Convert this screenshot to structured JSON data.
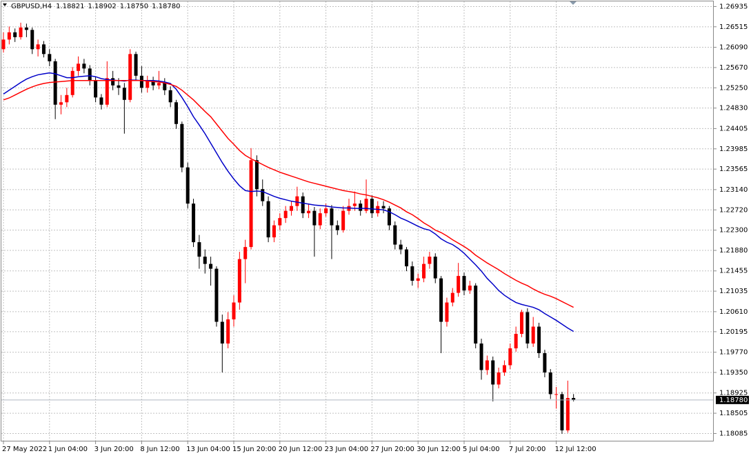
{
  "chart_data": {
    "type": "candlestick",
    "title": "GBPUSD,H4",
    "header_values": [
      "1.18821",
      "1.18902",
      "1.18750",
      "1.18780"
    ],
    "up_color": "#ff0000",
    "down_color": "#000000",
    "grid": true,
    "ylim": [
      1.1792,
      1.2707
    ],
    "yticks": [
      1.26935,
      1.26515,
      {
        "value": 1.2609,
        "label": "1.26090"
      },
      {
        "value": 1.2567,
        "label": "1.25670"
      },
      {
        "value": 1.2525,
        "label": "1.25250"
      },
      {
        "value": 1.2483,
        "label": "1.24830"
      },
      1.24405,
      1.23985,
      1.23565,
      {
        "value": 1.2314,
        "label": "1.23140"
      },
      {
        "value": 1.2272,
        "label": "1.22720"
      },
      {
        "value": 1.223,
        "label": "1.22300"
      },
      {
        "value": 1.2188,
        "label": "1.21880"
      },
      1.21455,
      1.21035,
      {
        "value": 1.2061,
        "label": "1.20610"
      },
      1.20195,
      {
        "value": 1.1977,
        "label": "1.19770"
      },
      {
        "value": 1.1935,
        "label": "1.19350"
      },
      1.18925,
      1.18505,
      1.18085
    ],
    "xticks": [
      {
        "value": 0,
        "label": "27 May 2022"
      },
      {
        "value": 8,
        "label": "1 Jun 04:00"
      },
      {
        "value": 16,
        "label": "3 Jun 20:00"
      },
      {
        "value": 24,
        "label": "8 Jun 12:00"
      },
      {
        "value": 32,
        "label": "13 Jun 04:00"
      },
      {
        "value": 40,
        "label": "15 Jun 20:00"
      },
      {
        "value": 48,
        "label": "20 Jun 12:00"
      },
      {
        "value": 56,
        "label": "23 Jun 04:00"
      },
      {
        "value": 64,
        "label": "27 Jun 20:00"
      },
      {
        "value": 72,
        "label": "30 Jun 12:00"
      },
      {
        "value": 80,
        "label": "5 Jul 04:00"
      },
      {
        "value": 88,
        "label": "7 Jul 20:00"
      },
      {
        "value": 96,
        "label": "12 Jul 12:00"
      }
    ],
    "current_price": {
      "value": 1.1878,
      "label": "1.18780"
    },
    "ohlc": [
      [
        1.2605,
        1.264,
        1.2598,
        1.2625
      ],
      [
        1.2625,
        1.2652,
        1.2615,
        1.264
      ],
      [
        1.264,
        1.2648,
        1.262,
        1.263
      ],
      [
        1.263,
        1.266,
        1.2625,
        1.265
      ],
      [
        1.265,
        1.2658,
        1.263,
        1.2645
      ],
      [
        1.2645,
        1.265,
        1.2595,
        1.2605
      ],
      [
        1.2605,
        1.2625,
        1.259,
        1.2615
      ],
      [
        1.2615,
        1.2622,
        1.2588,
        1.2595
      ],
      [
        1.2595,
        1.2605,
        1.257,
        1.258
      ],
      [
        1.258,
        1.2585,
        1.246,
        1.249
      ],
      [
        1.249,
        1.251,
        1.247,
        1.2495
      ],
      [
        1.2495,
        1.2525,
        1.2485,
        1.251
      ],
      [
        1.251,
        1.2568,
        1.2505,
        1.256
      ],
      [
        1.256,
        1.259,
        1.255,
        1.2575
      ],
      [
        1.2575,
        1.2585,
        1.2555,
        1.2565
      ],
      [
        1.2565,
        1.2572,
        1.253,
        1.254
      ],
      [
        1.254,
        1.2548,
        1.2495,
        1.2505
      ],
      [
        1.2505,
        1.2512,
        1.248,
        1.249
      ],
      [
        1.249,
        1.258,
        1.2485,
        1.2545
      ],
      [
        1.2545,
        1.256,
        1.252,
        1.253
      ],
      [
        1.253,
        1.2545,
        1.251,
        1.2525
      ],
      [
        1.2525,
        1.2535,
        1.243,
        1.25
      ],
      [
        1.25,
        1.2605,
        1.2495,
        1.2595
      ],
      [
        1.2595,
        1.26,
        1.254,
        1.255
      ],
      [
        1.255,
        1.257,
        1.2515,
        1.2525
      ],
      [
        1.2525,
        1.255,
        1.2515,
        1.254
      ],
      [
        1.254,
        1.2548,
        1.252,
        1.253
      ],
      [
        1.253,
        1.256,
        1.2522,
        1.2535
      ],
      [
        1.2535,
        1.2545,
        1.251,
        1.252
      ],
      [
        1.252,
        1.2528,
        1.2485,
        1.2495
      ],
      [
        1.2495,
        1.25,
        1.244,
        1.245
      ],
      [
        1.245,
        1.2455,
        1.235,
        1.236
      ],
      [
        1.236,
        1.237,
        1.2275,
        1.2285
      ],
      [
        1.2285,
        1.2295,
        1.2195,
        1.2205
      ],
      [
        1.2205,
        1.222,
        1.215,
        1.2175
      ],
      [
        1.2175,
        1.219,
        1.214,
        1.216
      ],
      [
        1.216,
        1.2175,
        1.2115,
        1.215
      ],
      [
        1.215,
        1.2155,
        1.203,
        1.204
      ],
      [
        1.204,
        1.2055,
        1.1935,
        1.1995
      ],
      [
        1.1995,
        1.206,
        1.1985,
        1.2045
      ],
      [
        1.2045,
        1.2095,
        1.203,
        1.208
      ],
      [
        1.208,
        1.2185,
        1.2065,
        1.217
      ],
      [
        1.217,
        1.221,
        1.212,
        1.2195
      ],
      [
        1.2195,
        1.24,
        1.219,
        1.2375
      ],
      [
        1.2375,
        1.2385,
        1.23,
        1.2315
      ],
      [
        1.2315,
        1.2335,
        1.228,
        1.229
      ],
      [
        1.229,
        1.23,
        1.2205,
        1.2215
      ],
      [
        1.2215,
        1.225,
        1.2205,
        1.224
      ],
      [
        1.224,
        1.2265,
        1.223,
        1.2255
      ],
      [
        1.2255,
        1.228,
        1.2245,
        1.227
      ],
      [
        1.227,
        1.229,
        1.226,
        1.228
      ],
      [
        1.228,
        1.232,
        1.227,
        1.23
      ],
      [
        1.23,
        1.2308,
        1.2255,
        1.2265
      ],
      [
        1.2265,
        1.2285,
        1.2255,
        1.227
      ],
      [
        1.227,
        1.2278,
        1.2175,
        1.224
      ],
      [
        1.224,
        1.2275,
        1.2232,
        1.2265
      ],
      [
        1.2265,
        1.2285,
        1.2258,
        1.2275
      ],
      [
        1.2275,
        1.2282,
        1.217,
        1.224
      ],
      [
        1.224,
        1.225,
        1.222,
        1.223
      ],
      [
        1.223,
        1.228,
        1.2225,
        1.227
      ],
      [
        1.227,
        1.2295,
        1.2262,
        1.228
      ],
      [
        1.228,
        1.231,
        1.227,
        1.2285
      ],
      [
        1.2285,
        1.2292,
        1.226,
        1.227
      ],
      [
        1.227,
        1.2335,
        1.2265,
        1.2295
      ],
      [
        1.2295,
        1.2302,
        1.2255,
        1.2265
      ],
      [
        1.2265,
        1.229,
        1.2258,
        1.228
      ],
      [
        1.228,
        1.229,
        1.2265,
        1.2275
      ],
      [
        1.2275,
        1.228,
        1.223,
        1.224
      ],
      [
        1.224,
        1.2248,
        1.219,
        1.22
      ],
      [
        1.22,
        1.221,
        1.218,
        1.219
      ],
      [
        1.219,
        1.2195,
        1.2145,
        1.2155
      ],
      [
        1.2155,
        1.2165,
        1.2115,
        1.2125
      ],
      [
        1.2125,
        1.214,
        1.211,
        1.213
      ],
      [
        1.213,
        1.2175,
        1.2122,
        1.216
      ],
      [
        1.216,
        1.2185,
        1.215,
        1.2175
      ],
      [
        1.2175,
        1.2182,
        1.212,
        1.213
      ],
      [
        1.213,
        1.2135,
        1.1975,
        1.204
      ],
      [
        1.204,
        1.209,
        1.203,
        1.208
      ],
      [
        1.208,
        1.211,
        1.2072,
        1.21
      ],
      [
        1.21,
        1.2162,
        1.2092,
        1.2135
      ],
      [
        1.2135,
        1.2142,
        1.2095,
        1.2105
      ],
      [
        1.2105,
        1.2125,
        1.2098,
        1.2115
      ],
      [
        1.2115,
        1.212,
        1.1985,
        1.1995
      ],
      [
        1.1995,
        1.2005,
        1.192,
        1.194
      ],
      [
        1.194,
        1.197,
        1.193,
        1.196
      ],
      [
        1.196,
        1.1968,
        1.1875,
        1.191
      ],
      [
        1.191,
        1.1945,
        1.1902,
        1.1935
      ],
      [
        1.1935,
        1.196,
        1.1928,
        1.195
      ],
      [
        1.195,
        1.1995,
        1.1942,
        1.1985
      ],
      [
        1.1985,
        1.203,
        1.1978,
        1.2015
      ],
      [
        1.2015,
        1.2065,
        1.2008,
        1.206
      ],
      [
        1.206,
        1.2068,
        1.1985,
        1.1995
      ],
      [
        1.1995,
        1.205,
        1.1988,
        1.203
      ],
      [
        1.203,
        1.2038,
        1.1965,
        1.1975
      ],
      [
        1.1975,
        1.1982,
        1.1925,
        1.1935
      ],
      [
        1.1935,
        1.1942,
        1.188,
        1.189
      ],
      [
        1.189,
        1.1905,
        1.186,
        1.189
      ],
      [
        1.189,
        1.1895,
        1.1808,
        1.1815
      ],
      [
        1.1815,
        1.1918,
        1.181,
        1.1882
      ],
      [
        1.18821,
        1.18902,
        1.1875,
        1.1878
      ]
    ],
    "lines": [
      {
        "color": "#0000c8",
        "values": [
          1.2512,
          1.252,
          1.2528,
          1.2536,
          1.2543,
          1.2548,
          1.2552,
          1.2554,
          1.2556,
          1.2554,
          1.255,
          1.2546,
          1.2546,
          1.2548,
          1.2549,
          1.255,
          1.2548,
          1.2544,
          1.2542,
          1.2541,
          1.254,
          1.2539,
          1.2541,
          1.2541,
          1.254,
          1.254,
          1.254,
          1.2539,
          1.2537,
          1.2534,
          1.2522,
          1.2505,
          1.2486,
          1.2465,
          1.2448,
          1.243,
          1.241,
          1.239,
          1.237,
          1.2352,
          1.2336,
          1.2322,
          1.2312,
          1.231,
          1.2311,
          1.231,
          1.2305,
          1.23,
          1.2296,
          1.2293,
          1.229,
          1.2288,
          1.2286,
          1.2284,
          1.2282,
          1.2281,
          1.228,
          1.2278,
          1.2277,
          1.2276,
          1.2276,
          1.2275,
          1.2275,
          1.2275,
          1.2274,
          1.2273,
          1.2272,
          1.2268,
          1.2262,
          1.2255,
          1.225,
          1.2244,
          1.2238,
          1.2233,
          1.223,
          1.2222,
          1.2212,
          1.2205,
          1.22,
          1.2192,
          1.2182,
          1.217,
          1.2158,
          1.2145,
          1.213,
          1.2118,
          1.2105,
          1.2095,
          1.2087,
          1.208,
          1.2076,
          1.2073,
          1.207,
          1.2065,
          1.2057,
          1.205,
          1.2043,
          1.2035,
          1.2027,
          1.202
        ]
      },
      {
        "color": "#ff0000",
        "values": [
          1.25,
          1.2504,
          1.251,
          1.2516,
          1.2522,
          1.2527,
          1.2531,
          1.2534,
          1.2536,
          1.2537,
          1.2538,
          1.2539,
          1.254,
          1.254,
          1.254,
          1.254,
          1.254,
          1.254,
          1.254,
          1.254,
          1.254,
          1.254,
          1.254,
          1.254,
          1.254,
          1.2539,
          1.2538,
          1.2537,
          1.2535,
          1.2532,
          1.2528,
          1.252,
          1.251,
          1.25,
          1.2488,
          1.2476,
          1.2465,
          1.245,
          1.2435,
          1.242,
          1.2408,
          1.2395,
          1.2385,
          1.2378,
          1.2372,
          1.2366,
          1.236,
          1.2355,
          1.235,
          1.2346,
          1.2342,
          1.2338,
          1.2334,
          1.233,
          1.2327,
          1.2324,
          1.2321,
          1.2318,
          1.2315,
          1.2312,
          1.231,
          1.2308,
          1.2305,
          1.2303,
          1.23,
          1.2297,
          1.2293,
          1.2288,
          1.2282,
          1.2276,
          1.2268,
          1.2262,
          1.2254,
          1.2245,
          1.2238,
          1.223,
          1.2225,
          1.2218,
          1.221,
          1.2203,
          1.2196,
          1.2188,
          1.2178,
          1.217,
          1.2162,
          1.2155,
          1.2148,
          1.214,
          1.2133,
          1.2126,
          1.212,
          1.2115,
          1.2108,
          1.2102,
          1.2097,
          1.2093,
          1.2088,
          1.2082,
          1.2076,
          1.207
        ]
      }
    ]
  }
}
